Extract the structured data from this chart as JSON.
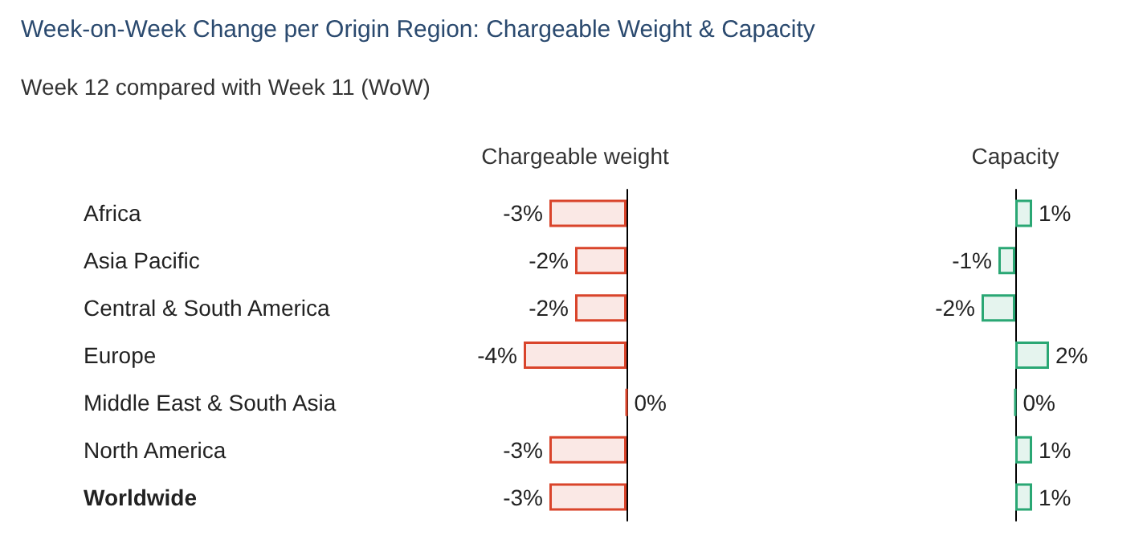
{
  "chart_data": [
    {
      "type": "bar",
      "orientation": "horizontal",
      "title": "Week-on-Week Change per Origin Region: Chargeable Weight & Capacity",
      "subtitle": "Week 12 compared with Week 11 (WoW)",
      "xlabel": "Chargeable weight",
      "categories": [
        "Africa",
        "Asia Pacific",
        "Central & South America",
        "Europe",
        "Middle East & South Asia",
        "North America",
        "Worldwide"
      ],
      "series": [
        {
          "color": "#d9442b",
          "values": [
            -3,
            -2,
            -2,
            -4,
            0,
            -3,
            -3
          ],
          "value_labels": [
            "-3%",
            "-2%",
            "-2%",
            "-4%",
            "0%",
            "-3%",
            "-3%"
          ]
        }
      ],
      "tick_labels": "y"
    },
    {
      "type": "bar",
      "orientation": "horizontal",
      "xlabel": "Capacity",
      "categories": [
        null,
        null,
        null,
        null,
        null,
        null,
        null
      ],
      "series": [
        {
          "color": "#2aa774",
          "values": [
            1,
            -1,
            -2,
            2,
            0,
            1,
            1
          ],
          "value_labels": [
            "1%",
            "-1%",
            "-2%",
            "2%",
            "0%",
            "1%",
            "1%"
          ]
        }
      ],
      "tick_labels": false
    }
  ]
}
